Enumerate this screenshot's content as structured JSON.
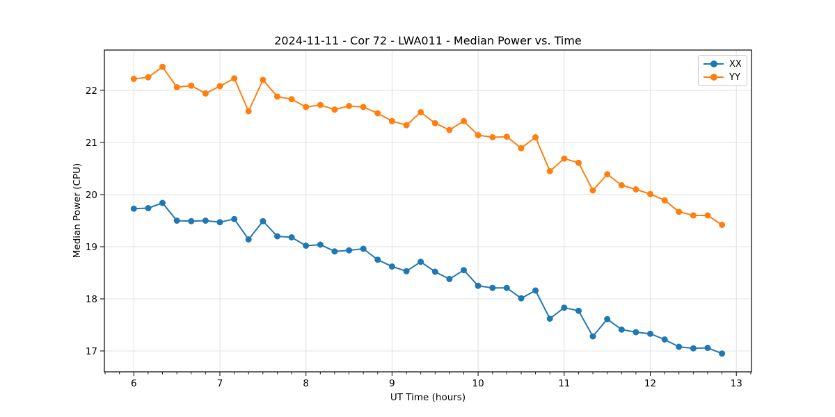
{
  "figure": {
    "title": "2024-11-11 - Cor 72 - LWA011 - Median Power vs. Time",
    "xlabel": "UT Time (hours)",
    "ylabel": "Median Power (CPU)"
  },
  "legend": {
    "entries": [
      {
        "label": "XX",
        "color": "#1f77b4"
      },
      {
        "label": "YY",
        "color": "#ff7f0e"
      }
    ]
  },
  "chart_data": {
    "type": "line",
    "title": "2024-11-11 - Cor 72 - LWA011 - Median Power vs. Time",
    "xlabel": "UT Time (hours)",
    "ylabel": "Median Power (CPU)",
    "grid": true,
    "legend_position": "upper right",
    "xlim": [
      5.658,
      13.176
    ],
    "ylim": [
      16.6,
      22.773
    ],
    "xticks": [
      6,
      7,
      8,
      9,
      10,
      11,
      12,
      13
    ],
    "yticks": [
      17,
      18,
      19,
      20,
      21,
      22
    ],
    "minor_x_step": 0.16667,
    "x": [
      6.0,
      6.167,
      6.333,
      6.5,
      6.667,
      6.833,
      7.0,
      7.167,
      7.333,
      7.5,
      7.667,
      7.833,
      8.0,
      8.167,
      8.333,
      8.5,
      8.667,
      8.833,
      9.0,
      9.167,
      9.333,
      9.5,
      9.667,
      9.833,
      10.0,
      10.167,
      10.333,
      10.5,
      10.667,
      10.833,
      11.0,
      11.167,
      11.333,
      11.5,
      11.667,
      11.833,
      12.0,
      12.167,
      12.333,
      12.5,
      12.667,
      12.833
    ],
    "series": [
      {
        "name": "XX",
        "color": "#1f77b4",
        "marker": "circle",
        "values": [
          19.73,
          19.74,
          19.84,
          19.5,
          19.49,
          19.5,
          19.47,
          19.53,
          19.14,
          19.49,
          19.2,
          19.18,
          19.02,
          19.04,
          18.91,
          18.93,
          18.96,
          18.75,
          18.62,
          18.53,
          18.71,
          18.52,
          18.38,
          18.55,
          18.25,
          18.21,
          18.21,
          18.01,
          18.16,
          17.62,
          17.83,
          17.77,
          17.28,
          17.61,
          17.41,
          17.36,
          17.33,
          17.22,
          17.08,
          17.05,
          17.06,
          16.95
        ]
      },
      {
        "name": "YY",
        "color": "#ff7f0e",
        "marker": "circle",
        "values": [
          22.22,
          22.25,
          22.45,
          22.06,
          22.09,
          21.94,
          22.08,
          22.23,
          21.6,
          22.2,
          21.88,
          21.83,
          21.68,
          21.72,
          21.63,
          21.7,
          21.68,
          21.56,
          21.41,
          21.33,
          21.58,
          21.37,
          21.24,
          21.41,
          21.14,
          21.1,
          21.11,
          20.89,
          21.1,
          20.45,
          20.69,
          20.61,
          20.08,
          20.39,
          20.18,
          20.1,
          20.01,
          19.89,
          19.67,
          19.6,
          19.6,
          19.42
        ]
      }
    ],
    "colors": {
      "grid": "#e0e0e0",
      "spine": "#000000",
      "background": "#ffffff"
    }
  }
}
